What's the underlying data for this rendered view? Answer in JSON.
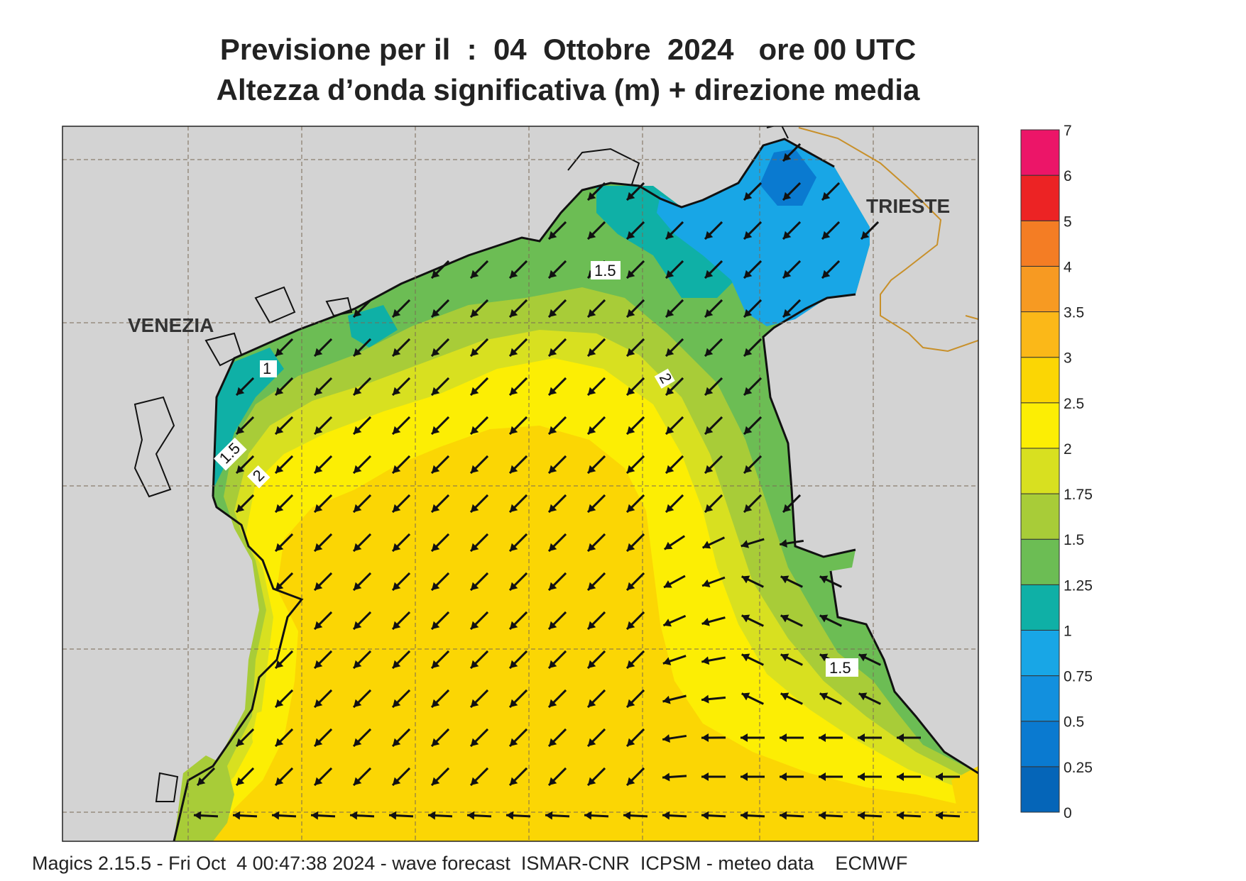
{
  "header": {
    "title_line1": "Previsione per il  :  04  Ottobre  2024   ore 00 UTC",
    "title_line2": "Altezza d’onda significativa (m) + direzione media"
  },
  "map": {
    "city_labels": [
      "VENEZIA",
      "TRIESTE"
    ],
    "contour_labels": [
      "1.5",
      "2",
      "1.5",
      "2",
      "1.5",
      "1"
    ],
    "arrow_direction": "south-west"
  },
  "colorbar": {
    "levels": [
      "0",
      "0.25",
      "0.5",
      "0.75",
      "1",
      "1.25",
      "1.5",
      "1.75",
      "2",
      "2.5",
      "3",
      "3.5",
      "4",
      "5",
      "6",
      "7"
    ],
    "colors": [
      "#0565b8",
      "#0a7ad0",
      "#1290de",
      "#18a6e6",
      "#0fb0a6",
      "#6cbd54",
      "#a8cc38",
      "#d8e020",
      "#fcee04",
      "#fbd604",
      "#fbb818",
      "#f79a22",
      "#f47d24",
      "#ec2324",
      "#ec1568"
    ]
  },
  "footer": {
    "text": "Magics 2.15.5 - Fri Oct  4 00:47:38 2024 - wave forecast  ISMAR-CNR  ICPSM - meteo data    ECMWF"
  }
}
